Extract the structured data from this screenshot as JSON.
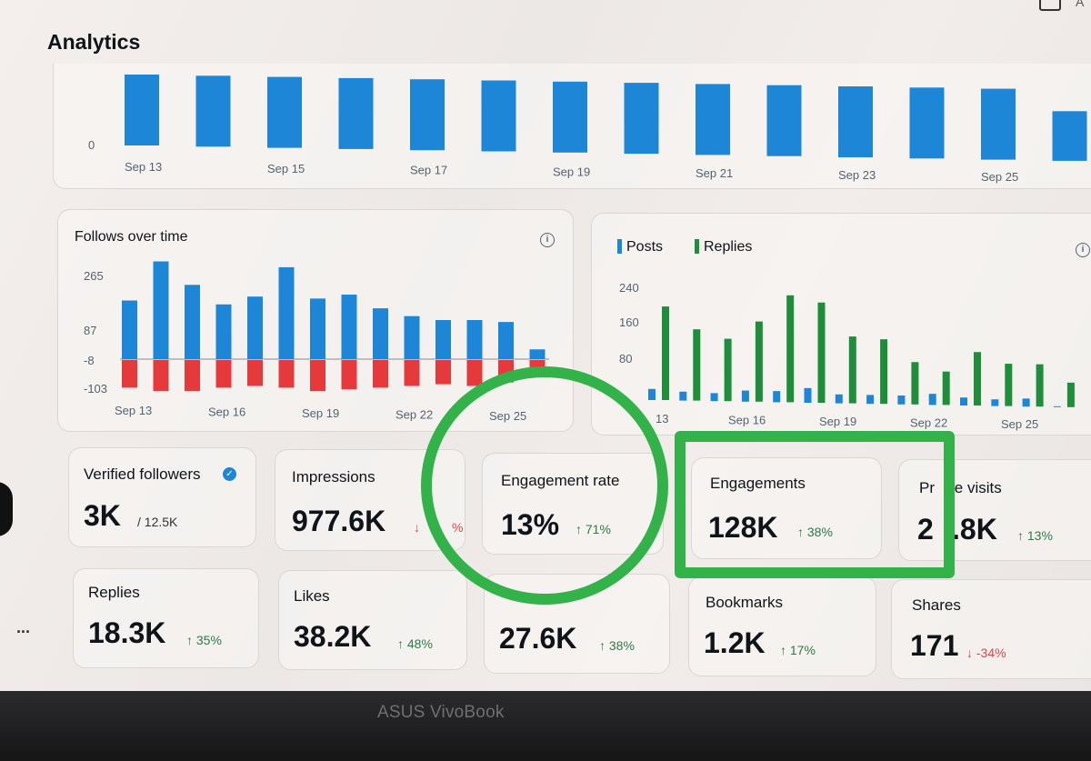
{
  "page": {
    "title": "Analytics",
    "device_brand": "ASUS VivoBook",
    "top_right_partial": "A",
    "menu": "..."
  },
  "impressions_chart": {
    "y_label": "0",
    "x_ticks": [
      "Sep 13",
      "Sep 15",
      "Sep 17",
      "Sep 19",
      "Sep 21",
      "Sep 23",
      "Sep 25"
    ],
    "bar_color": "#1d86d6"
  },
  "follows_chart": {
    "title": "Follows over time",
    "y_ticks": [
      "265",
      "87",
      "-8",
      "-103"
    ],
    "x_ticks": [
      "Sep 13",
      "Sep 16",
      "Sep 19",
      "Sep 22",
      "Sep 25"
    ],
    "follow_color": "#1d86d6",
    "unfollow_color": "#e5393c"
  },
  "posts_chart": {
    "legend": [
      {
        "name": "Posts",
        "color": "#1d86d6"
      },
      {
        "name": "Replies",
        "color": "#1f8e3a"
      }
    ],
    "y_ticks": [
      "240",
      "160",
      "80"
    ],
    "x_ticks": [
      "13",
      "Sep 16",
      "Sep 19",
      "Sep 22",
      "Sep 25"
    ]
  },
  "metrics": {
    "verified_followers": {
      "label": "Verified followers",
      "value": "3K",
      "total": "/ 12.5K"
    },
    "impressions": {
      "label": "Impressions",
      "value": "977.6K",
      "change": "↓ ",
      "change_tail": "%"
    },
    "engagement_rate": {
      "label": "Engagement rate",
      "value": "13%",
      "change": "↑ 71%"
    },
    "engagements": {
      "label": "Engagements",
      "value": "128K",
      "change": "↑ 38%"
    },
    "profile_visits": {
      "label_a": "Pr",
      "label_b": "le visits",
      "value_a": "2",
      "value_b": ".8K",
      "change": "↑ 13%"
    },
    "replies": {
      "label": "Replies",
      "value": "18.3K",
      "change": "↑ 35%"
    },
    "likes": {
      "label": "Likes",
      "value": "38.2K",
      "change": "↑ 48%"
    },
    "reposts": {
      "value": "27.6K",
      "change": "↑ 38%"
    },
    "bookmarks": {
      "label": "Bookmarks",
      "value": "1.2K",
      "change": "↑ 17%"
    },
    "shares": {
      "label": "Shares",
      "value": "171",
      "change": "↓ -34%"
    }
  },
  "chart_data": [
    {
      "type": "bar",
      "categories": [
        "Sep 13",
        "Sep 14",
        "Sep 15",
        "Sep 16",
        "Sep 17",
        "Sep 18",
        "Sep 19",
        "Sep 20",
        "Sep 21",
        "Sep 22",
        "Sep 23",
        "Sep 24",
        "Sep 25",
        "Sep 26"
      ],
      "values": [
        100,
        100,
        100,
        100,
        100,
        100,
        100,
        100,
        100,
        100,
        100,
        100,
        100,
        70
      ],
      "ylim": [
        0,
        100
      ]
    },
    {
      "type": "bar",
      "title": "Follows over time",
      "categories": [
        "Sep 13",
        "Sep 14",
        "Sep 15",
        "Sep 16",
        "Sep 17",
        "Sep 18",
        "Sep 19",
        "Sep 20",
        "Sep 21",
        "Sep 22",
        "Sep 23",
        "Sep 24",
        "Sep 25",
        "Sep 26"
      ],
      "series": [
        {
          "values": [
            150,
            250,
            190,
            140,
            160,
            235,
            155,
            165,
            130,
            110,
            100,
            100,
            95,
            25
          ]
        },
        {
          "values": [
            -80,
            -90,
            -90,
            -80,
            -75,
            -80,
            -90,
            -85,
            -80,
            -75,
            -70,
            -75,
            -65,
            -45
          ]
        }
      ],
      "ylim": [
        -103,
        265
      ]
    },
    {
      "type": "bar",
      "categories": [
        "Sep 13",
        "Sep 14",
        "Sep 15",
        "Sep 16",
        "Sep 17",
        "Sep 18",
        "Sep 19",
        "Sep 20",
        "Sep 21",
        "Sep 22",
        "Sep 23",
        "Sep 24",
        "Sep 25",
        "Sep 26"
      ],
      "series": [
        {
          "name": "Posts",
          "values": [
            25,
            20,
            18,
            25,
            25,
            33,
            20,
            20,
            20,
            25,
            18,
            15,
            18,
            2
          ]
        },
        {
          "name": "Replies",
          "values": [
            210,
            160,
            140,
            180,
            240,
            225,
            150,
            145,
            95,
            75,
            120,
            95,
            95,
            55
          ]
        }
      ],
      "ylim": [
        0,
        240
      ]
    }
  ]
}
